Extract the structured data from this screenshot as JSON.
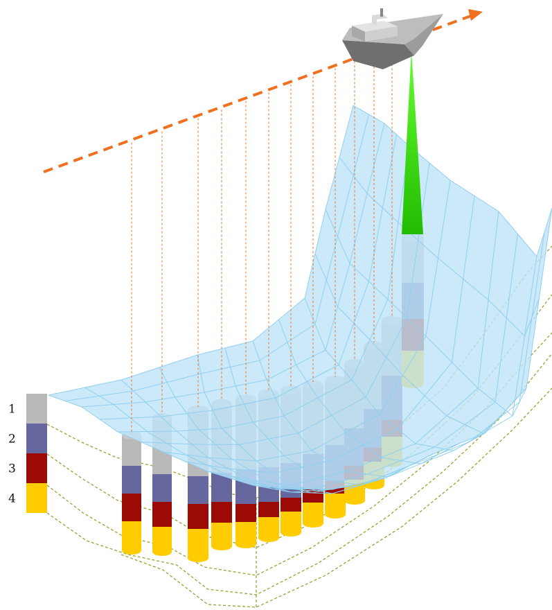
{
  "legend": {
    "items": [
      {
        "label": "1",
        "color": "#b9b9b9"
      },
      {
        "label": "2",
        "color": "#65679e"
      },
      {
        "label": "3",
        "color": "#9b0a05"
      },
      {
        "label": "4",
        "color": "#ffcc00"
      }
    ]
  },
  "colors": {
    "ship_track": "#f07020",
    "sonar_beam": "#33cc00",
    "surface_fill": "#bfe4f8",
    "surface_grid": "#8fd0f0",
    "drop_lines": "#f07020",
    "layer_boundaries": "#9aa032",
    "ship_hull": "#9a9a9a"
  },
  "icons": {
    "ship": "survey-ship-icon",
    "direction": "arrowhead-icon"
  }
}
